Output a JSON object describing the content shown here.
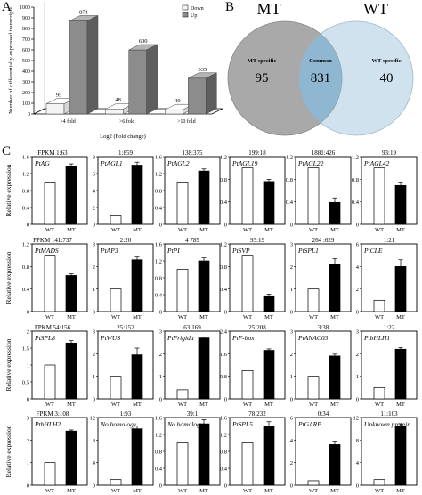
{
  "panel_labels": {
    "a": "A",
    "b": "B",
    "c": "C"
  },
  "colors": {
    "up_bar": "#8c8c8c",
    "down_bar": "#f4f4f4",
    "venn_mt": "#a9a9a9",
    "venn_wt": "#cfe2ee",
    "venn_overlap": "#8fb7d2",
    "wt_bar": "#ffffff",
    "mt_bar": "#000000"
  },
  "chart_data": [
    {
      "type": "bar",
      "categories": [
        ">4 fold",
        ">6 fold",
        ">10 fold"
      ],
      "series": [
        {
          "name": "Down",
          "values": [
            95,
            48,
            40
          ]
        },
        {
          "name": "Up",
          "values": [
            871,
            600,
            335
          ]
        }
      ],
      "data_labels": {
        "Down": [
          "95",
          "48",
          "40"
        ],
        "Up": [
          "871",
          "600",
          "335"
        ]
      },
      "xlabel": "Log2 (Fold change)",
      "ylabel": "Number of differentially expressed transcripts",
      "ylim": [
        0,
        1000
      ],
      "yticks": [
        "0",
        "100",
        "200",
        "300",
        "400",
        "500",
        "600",
        "700",
        "800",
        "900",
        "1000"
      ],
      "legend": "top-right",
      "style": "3d"
    },
    {
      "type": "venn",
      "sets": [
        "MT",
        "WT"
      ],
      "regions": [
        {
          "label": "MT-specific",
          "value": "95"
        },
        {
          "label": "Common",
          "value": "831"
        },
        {
          "label": "WT-specific",
          "value": "40"
        }
      ]
    },
    {
      "type": "bar",
      "panel": "C",
      "ylabel": "Relative expression",
      "categories": [
        "WT",
        "MT"
      ],
      "fpkm_label": "FPKM",
      "panels": [
        {
          "gene": "PtAG",
          "fpkm": "1:63",
          "fpkm_prefix": true,
          "ylim": [
            0,
            1.6
          ],
          "yticks": [
            "0",
            "0.4",
            "0.8",
            "1.2",
            "1.6"
          ],
          "values": [
            1,
            1.37
          ],
          "errors": [
            0,
            0.06
          ]
        },
        {
          "gene": "PtAGL1",
          "fpkm": "1:859",
          "ylim": [
            0,
            8
          ],
          "yticks": [
            "0",
            "2",
            "4",
            "6",
            "8"
          ],
          "values": [
            1,
            7.0
          ],
          "errors": [
            0,
            0.35
          ]
        },
        {
          "gene": "PtAGL2",
          "fpkm": "138:375",
          "ylim": [
            0,
            1.6
          ],
          "yticks": [
            "0",
            "0.4",
            "0.8",
            "1.2",
            "1.6"
          ],
          "values": [
            1,
            1.26
          ],
          "errors": [
            0,
            0.05
          ]
        },
        {
          "gene": "PtAGL19",
          "fpkm": "199:18",
          "ylim": [
            0,
            1.2
          ],
          "yticks": [
            "0",
            "0.4",
            "0.8",
            "1.2"
          ],
          "values": [
            1,
            0.76
          ],
          "errors": [
            0,
            0.04
          ]
        },
        {
          "gene": "PtAGL22",
          "fpkm": "1881:426",
          "ylim": [
            0,
            1.2
          ],
          "yticks": [
            "0",
            "0.4",
            "0.8",
            "1.2"
          ],
          "values": [
            1,
            0.39
          ],
          "errors": [
            0,
            0.08
          ]
        },
        {
          "gene": "PtAGL42",
          "fpkm": "93:19",
          "ylim": [
            0,
            1.2
          ],
          "yticks": [
            "0",
            "0.4",
            "0.8",
            "1.2"
          ],
          "values": [
            1,
            0.69
          ],
          "errors": [
            0,
            0.06
          ]
        },
        {
          "gene": "PtMADS",
          "fpkm": "141:737",
          "fpkm_prefix": true,
          "ylim": [
            0,
            1.2
          ],
          "yticks": [
            "0",
            "0.4",
            "0.8",
            "1.2"
          ],
          "values": [
            1,
            0.64
          ],
          "errors": [
            0,
            0.03
          ]
        },
        {
          "gene": "PtAP3",
          "fpkm": "2:20",
          "ylim": [
            0,
            3
          ],
          "yticks": [
            "0",
            "1",
            "2",
            "3"
          ],
          "values": [
            1,
            2.3
          ],
          "errors": [
            0,
            0.12
          ]
        },
        {
          "gene": "PtPI",
          "fpkm": "4     789",
          "ylim": [
            0,
            1.6
          ],
          "yticks": [
            "0",
            "0.4",
            "0.8",
            "1.2",
            "1.6"
          ],
          "values": [
            1,
            1.2
          ],
          "errors": [
            0,
            0.07
          ]
        },
        {
          "gene": "PtSVP",
          "fpkm": "93:19",
          "ylim": [
            0,
            1.2
          ],
          "yticks": [
            "0",
            "0.4",
            "0.8",
            "1.2"
          ],
          "values": [
            1,
            0.28
          ],
          "errors": [
            0,
            0.03
          ]
        },
        {
          "gene": "PtSPL1",
          "fpkm": "264 :629",
          "ylim": [
            0,
            3
          ],
          "yticks": [
            "0",
            "1",
            "2",
            "3"
          ],
          "values": [
            1,
            2.1
          ],
          "errors": [
            0,
            0.25
          ]
        },
        {
          "gene": "PtCLE",
          "fpkm": "1:21",
          "ylim": [
            0,
            6
          ],
          "yticks": [
            "0",
            "2",
            "4",
            "6"
          ],
          "values": [
            1,
            4.0
          ],
          "errors": [
            0,
            0.6
          ]
        },
        {
          "gene": "PtSPL8",
          "fpkm": "54:156",
          "fpkm_prefix": true,
          "ylim": [
            0,
            2
          ],
          "yticks": [
            "0",
            "0.5",
            "1",
            "1.5",
            "2"
          ],
          "values": [
            1,
            1.65
          ],
          "errors": [
            0,
            0.07
          ]
        },
        {
          "gene": "PtWUS",
          "fpkm": "25:152",
          "ylim": [
            0,
            3
          ],
          "yticks": [
            "0",
            "1",
            "2",
            "3"
          ],
          "values": [
            1,
            1.95
          ],
          "errors": [
            0,
            0.3
          ]
        },
        {
          "gene": "PtFrigida",
          "fpkm": "63:169",
          "ylim": [
            0,
            3
          ],
          "yticks": [
            "0",
            "1",
            "2",
            "3"
          ],
          "values": [
            0.4,
            2.7
          ],
          "errors": [
            0,
            0.05
          ]
        },
        {
          "gene": "PtF-box",
          "fpkm": "25:208",
          "ylim": [
            0,
            2.4
          ],
          "yticks": [
            "0",
            "0.8",
            "1.6",
            "2.4"
          ],
          "values": [
            1,
            1.72
          ],
          "errors": [
            0,
            0.05
          ]
        },
        {
          "gene": "PtANAC03",
          "fpkm": "3:38",
          "ylim": [
            0,
            3
          ],
          "yticks": [
            "0",
            "1",
            "2",
            "3"
          ],
          "values": [
            1,
            1.9
          ],
          "errors": [
            0,
            0.08
          ]
        },
        {
          "gene": "PtbHLH1",
          "fpkm": "1:22",
          "ylim": [
            0,
            3
          ],
          "yticks": [
            "0",
            "1",
            "2",
            "3"
          ],
          "values": [
            0.5,
            2.2
          ],
          "errors": [
            0,
            0.07
          ]
        },
        {
          "gene": "PtbHLH2",
          "fpkm": "3:108",
          "fpkm_prefix": true,
          "ylim": [
            0,
            3
          ],
          "yticks": [
            "0",
            "1",
            "2",
            "3"
          ],
          "values": [
            1,
            2.4
          ],
          "errors": [
            0,
            0.05
          ]
        },
        {
          "gene": "No homology",
          "fpkm": "1:93",
          "ylim": [
            0,
            12
          ],
          "yticks": [
            "0",
            "4",
            "8",
            "12"
          ],
          "values": [
            1,
            10.0
          ],
          "errors": [
            0,
            0.5
          ]
        },
        {
          "gene": "No homology",
          "fpkm": "39:1",
          "ylim": [
            0,
            1.6
          ],
          "yticks": [
            "0",
            "0.4",
            "0.8",
            "1.2",
            "1.6"
          ],
          "values": [
            1,
            1.45
          ],
          "errors": [
            0,
            0.1
          ]
        },
        {
          "gene": "PtSPL5",
          "fpkm": "78:232",
          "ylim": [
            0,
            1.6
          ],
          "yticks": [
            "0",
            "0.4",
            "0.8",
            "1.2",
            "1.6"
          ],
          "values": [
            1,
            1.4
          ],
          "errors": [
            0,
            0.1
          ]
        },
        {
          "gene": "PtGARP",
          "fpkm": "0:34",
          "ylim": [
            0,
            6
          ],
          "yticks": [
            "0",
            "2",
            "4",
            "6"
          ],
          "values": [
            0.4,
            3.6
          ],
          "errors": [
            0,
            0.3
          ]
        },
        {
          "gene": "Unknown protein",
          "fpkm": "11:103",
          "ylim": [
            0,
            12
          ],
          "yticks": [
            "0",
            "4",
            "8",
            "12"
          ],
          "values": [
            1,
            10.5
          ],
          "errors": [
            0,
            0.4
          ]
        }
      ]
    }
  ]
}
